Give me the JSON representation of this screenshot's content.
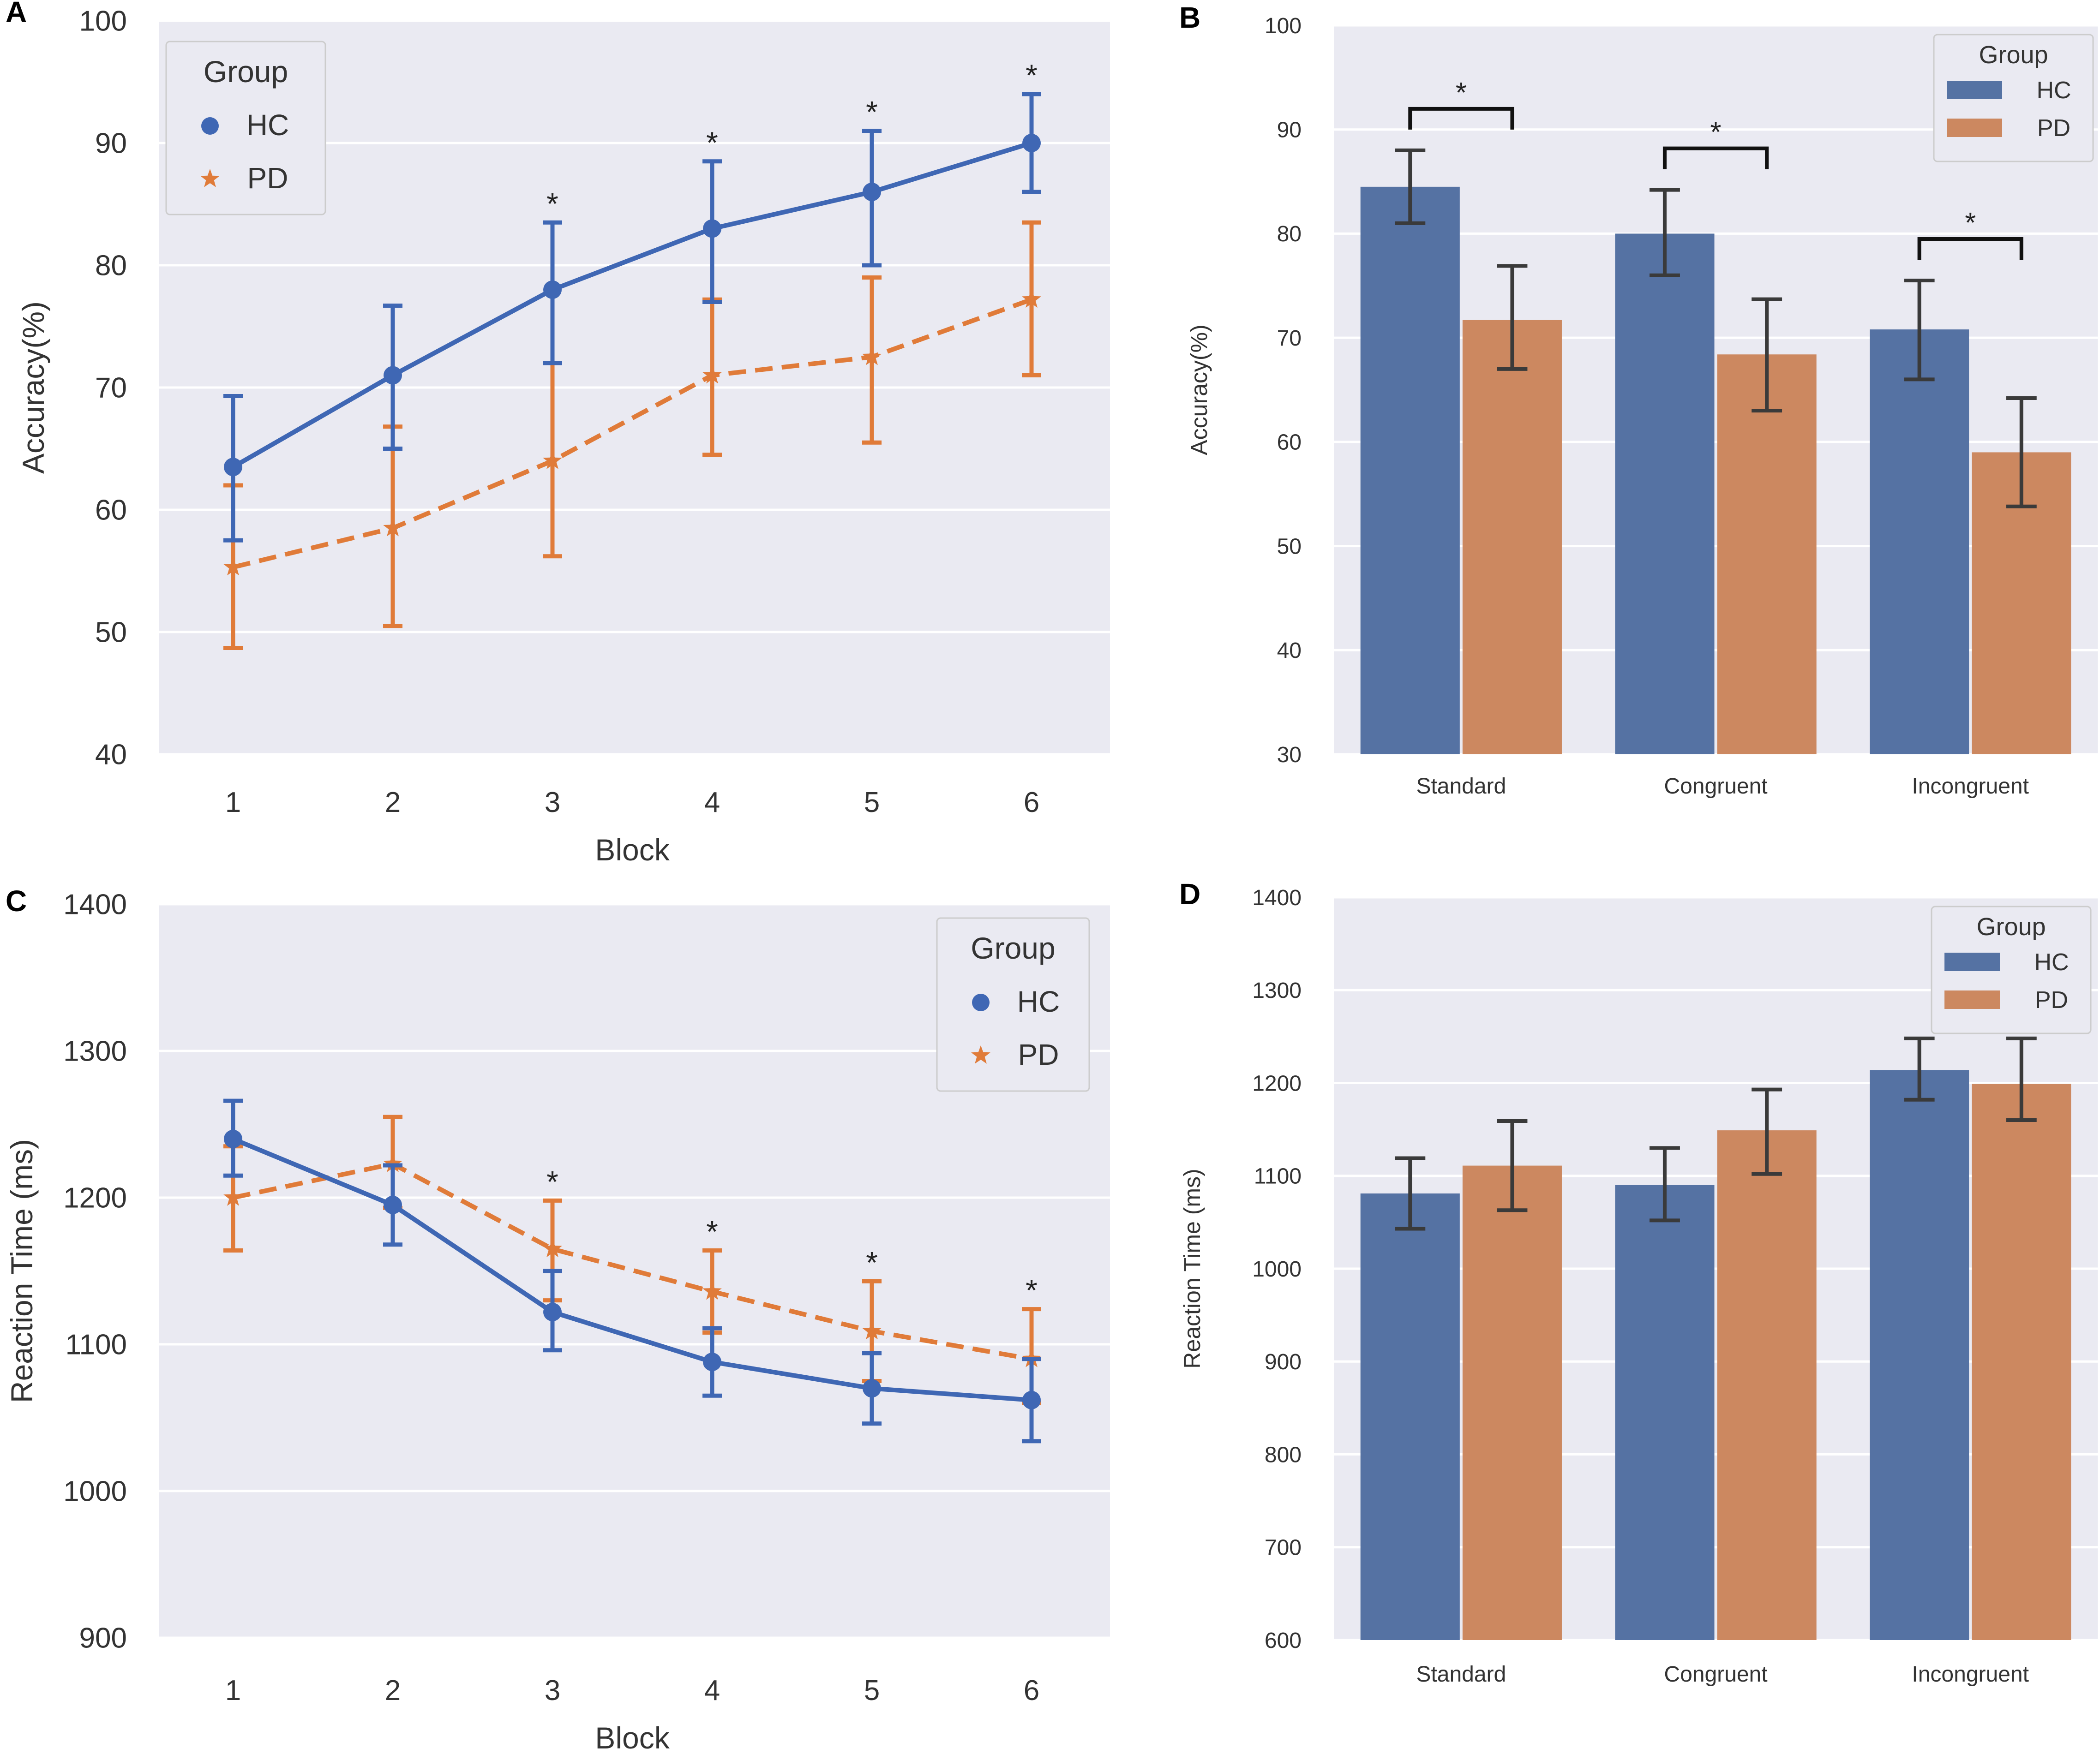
{
  "colors": {
    "hc": "#3f67b4",
    "pd": "#e07b39",
    "hc_bar": "#5572a3",
    "pd_bar": "#cc8860",
    "bg": "#eaeaf2",
    "grid": "#ffffff",
    "err": "#3a3a3a"
  },
  "chart_data": [
    {
      "panel": "A",
      "type": "line",
      "xlabel": "Block",
      "ylabel": "Accuracy(%)",
      "ylim": [
        40,
        100
      ],
      "yticks": [
        "40",
        "50",
        "60",
        "70",
        "80",
        "90",
        "100"
      ],
      "categories": [
        "1",
        "2",
        "3",
        "4",
        "5",
        "6"
      ],
      "legend": {
        "title": "Group",
        "position": "top-left"
      },
      "series": [
        {
          "name": "HC",
          "marker": "circle",
          "values": [
            63.5,
            71,
            78,
            83,
            86,
            90
          ],
          "err_low": [
            57.5,
            65,
            72,
            77,
            80,
            86
          ],
          "err_high": [
            69.3,
            76.7,
            83.5,
            88.5,
            91,
            94
          ]
        },
        {
          "name": "PD",
          "marker": "star",
          "values": [
            55.3,
            58.5,
            64,
            71,
            72.5,
            77.2
          ],
          "err_low": [
            48.7,
            50.5,
            56.2,
            64.5,
            65.5,
            71
          ],
          "err_high": [
            62,
            66.8,
            72,
            77.2,
            79,
            83.5
          ]
        }
      ],
      "significance": [
        "",
        "",
        "*",
        "*",
        "*",
        "*"
      ]
    },
    {
      "panel": "B",
      "type": "bar",
      "xlabel": "",
      "ylabel": "Accuracy(%)",
      "ylim": [
        30,
        100
      ],
      "yticks": [
        "30",
        "40",
        "50",
        "60",
        "70",
        "80",
        "90",
        "100"
      ],
      "categories": [
        "Standard",
        "Congruent",
        "Incongruent"
      ],
      "legend": {
        "title": "Group",
        "position": "top-right"
      },
      "series": [
        {
          "name": "HC",
          "values": [
            84.5,
            80,
            70.8
          ],
          "err_low": [
            81,
            76,
            66
          ],
          "err_high": [
            88,
            84.2,
            75.5
          ]
        },
        {
          "name": "PD",
          "values": [
            71.7,
            68.4,
            59
          ],
          "err_low": [
            67,
            63,
            53.8
          ],
          "err_high": [
            76.9,
            73.7,
            64.2
          ]
        }
      ],
      "significance": [
        "*",
        "*",
        "*"
      ]
    },
    {
      "panel": "C",
      "type": "line",
      "xlabel": "Block",
      "ylabel": "Reaction Time (ms)",
      "ylim": [
        900,
        1400
      ],
      "yticks": [
        "900",
        "1000",
        "1100",
        "1200",
        "1300",
        "1400"
      ],
      "categories": [
        "1",
        "2",
        "3",
        "4",
        "5",
        "6"
      ],
      "legend": {
        "title": "Group",
        "position": "top-right"
      },
      "series": [
        {
          "name": "HC",
          "marker": "circle",
          "values": [
            1240,
            1195,
            1122,
            1088,
            1070,
            1062
          ],
          "err_low": [
            1215,
            1168,
            1096,
            1065,
            1046,
            1034
          ],
          "err_high": [
            1266,
            1222,
            1150,
            1111,
            1094,
            1090
          ]
        },
        {
          "name": "PD",
          "marker": "star",
          "values": [
            1200,
            1223,
            1165,
            1136,
            1109,
            1090
          ],
          "err_low": [
            1164,
            1193,
            1130,
            1108,
            1075,
            1060
          ],
          "err_high": [
            1235,
            1255,
            1198,
            1164,
            1143,
            1124
          ]
        }
      ],
      "significance": [
        "",
        "",
        "*",
        "*",
        "*",
        "*"
      ]
    },
    {
      "panel": "D",
      "type": "bar",
      "xlabel": "",
      "ylabel": "Reaction Time (ms)",
      "ylim": [
        600,
        1400
      ],
      "yticks": [
        "600",
        "700",
        "800",
        "900",
        "1000",
        "1100",
        "1200",
        "1300",
        "1400"
      ],
      "categories": [
        "Standard",
        "Congruent",
        "Incongruent"
      ],
      "legend": {
        "title": "Group",
        "position": "top-right"
      },
      "series": [
        {
          "name": "HC",
          "values": [
            1081,
            1090,
            1214
          ],
          "err_low": [
            1043,
            1052,
            1182
          ],
          "err_high": [
            1119,
            1130,
            1248
          ]
        },
        {
          "name": "PD",
          "values": [
            1111,
            1149,
            1199
          ],
          "err_low": [
            1063,
            1102,
            1160
          ],
          "err_high": [
            1159,
            1193,
            1248
          ]
        }
      ],
      "significance": [
        "",
        "",
        ""
      ]
    }
  ]
}
